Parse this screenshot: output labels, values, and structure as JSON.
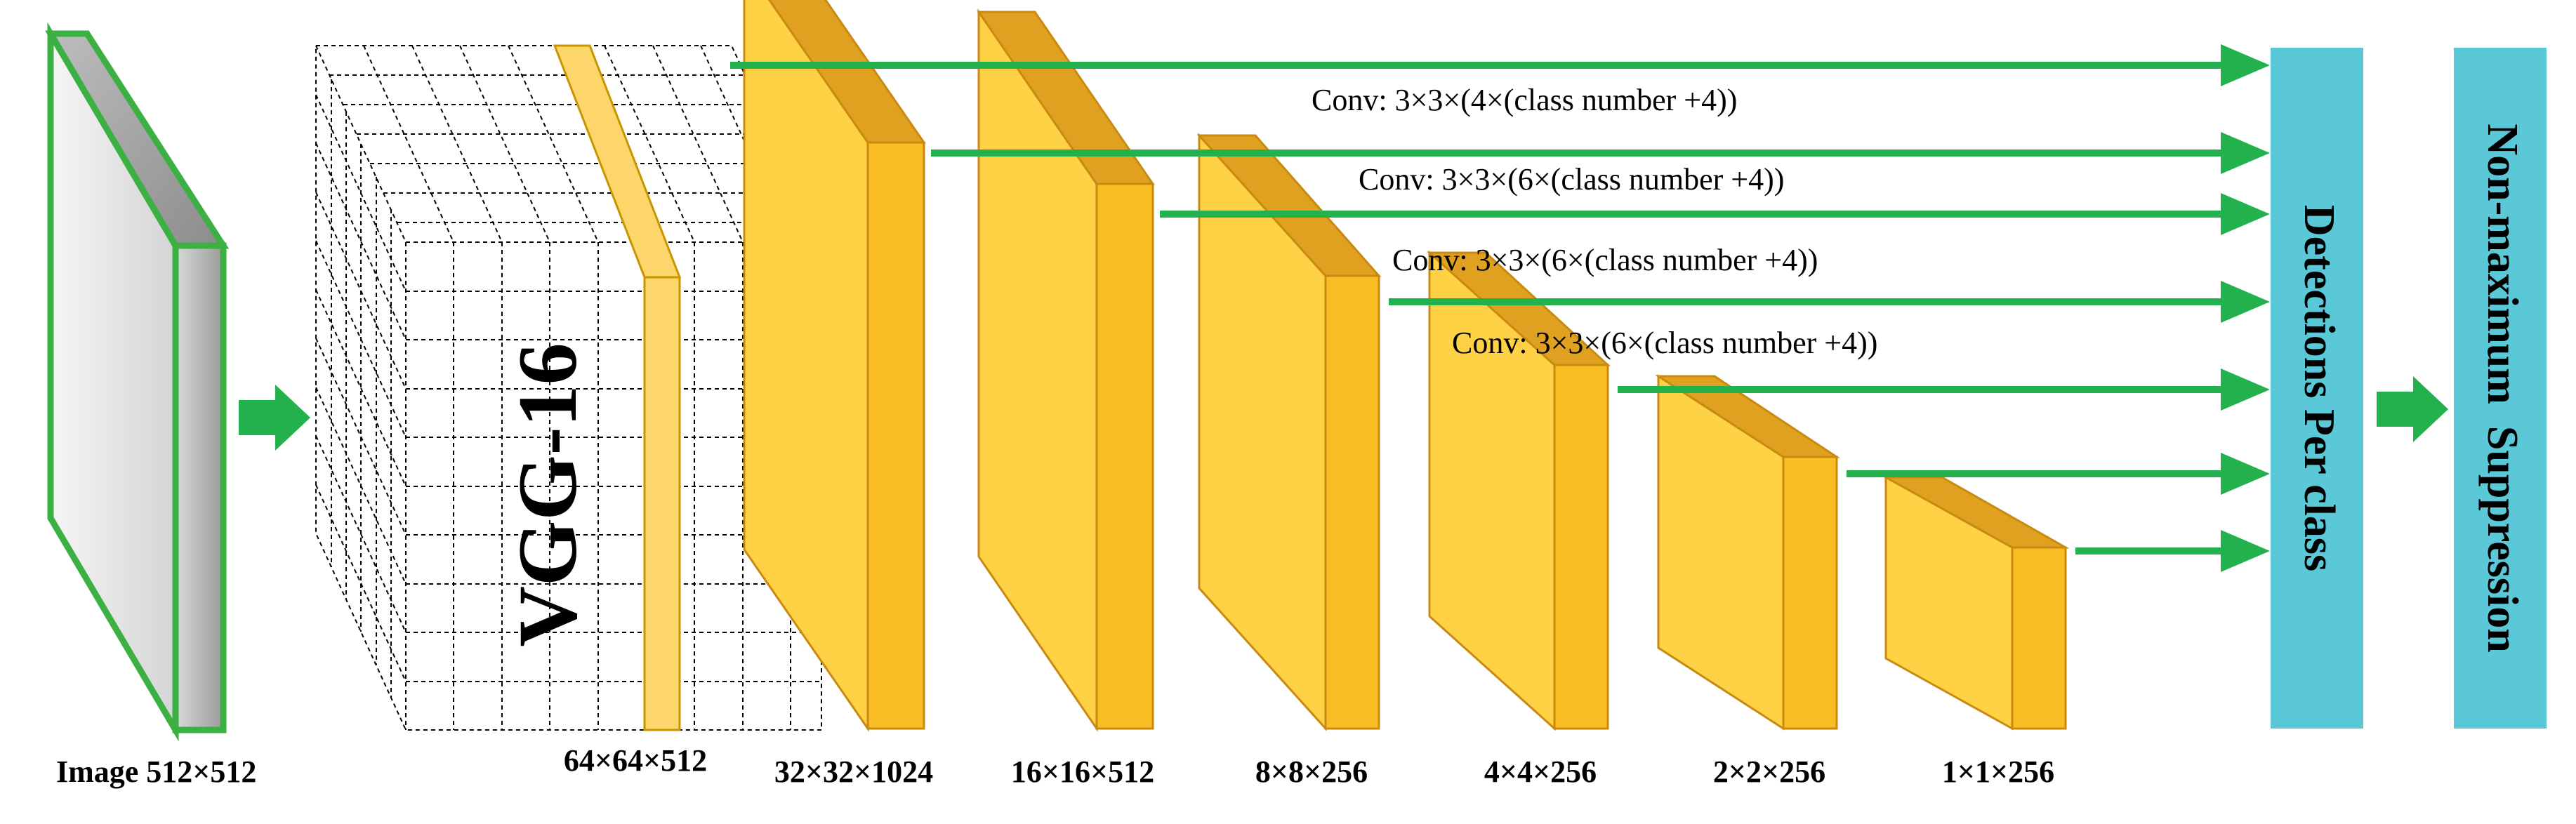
{
  "input": {
    "label": "Image 512×512"
  },
  "backbone": {
    "name": "VGG-16",
    "label": "64×64×512"
  },
  "feature_maps": [
    {
      "label": "32×32×1024"
    },
    {
      "label": "16×16×512"
    },
    {
      "label": "8×8×256"
    },
    {
      "label": "4×4×256"
    },
    {
      "label": "2×2×256"
    },
    {
      "label": "1×1×256"
    }
  ],
  "conv_labels": [
    "Conv: 3×3×(4×(class number +4))",
    "Conv: 3×3×(6×(class number +4))",
    "Conv: 3×3×(6×(class number +4))",
    "Conv: 3×3×(6×(class number +4))"
  ],
  "detections_label": "Detections Per class",
  "nms_label": "Non-maximum  Suppression",
  "colors": {
    "arrow": "#22b14c",
    "block_front": "#ffd144",
    "block_top": "#e0a020",
    "block_side": "#fbbd24",
    "panel": "#5bc8d8",
    "input_border": "#3cb043"
  }
}
